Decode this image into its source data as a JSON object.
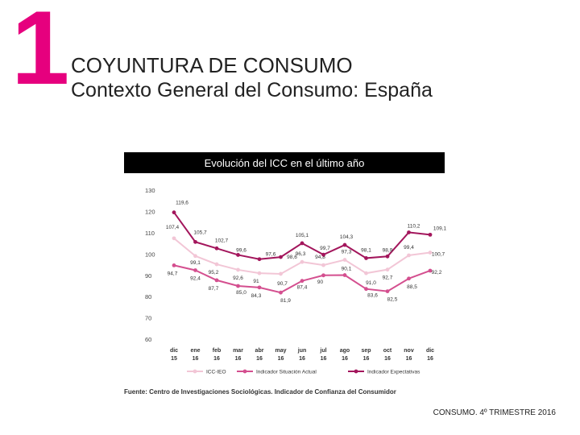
{
  "header": {
    "number": "1",
    "title": "COYUNTURA DE CONSUMO",
    "subtitle": "Contexto General del Consumo: España"
  },
  "colors": {
    "accent": "#e6007e",
    "icc": "#f2c6d6",
    "situacion": "#d44f8f",
    "expectativas": "#a3165c"
  },
  "chart_data": {
    "type": "line",
    "title": "Evolución del ICC en el último año",
    "categories": [
      [
        "dic",
        "15"
      ],
      [
        "ene",
        "16"
      ],
      [
        "feb",
        "16"
      ],
      [
        "mar",
        "16"
      ],
      [
        "abr",
        "16"
      ],
      [
        "may",
        "16"
      ],
      [
        "jun",
        "16"
      ],
      [
        "jul",
        "16"
      ],
      [
        "ago",
        "16"
      ],
      [
        "sep",
        "16"
      ],
      [
        "oct",
        "16"
      ],
      [
        "nov",
        "16"
      ],
      [
        "dic",
        "16"
      ]
    ],
    "ylim": [
      60,
      130
    ],
    "yticks": [
      60,
      70,
      80,
      90,
      100,
      110,
      120,
      130
    ],
    "legend_position": "bottom",
    "series": [
      {
        "name": "ICC-IEO",
        "values": [
          107.4,
          99.1,
          95.2,
          92.6,
          91,
          90.7,
          96.3,
          94.8,
          97.3,
          91.0,
          92.7,
          99.4,
          100.7
        ],
        "labels": [
          "107,4",
          "99,1",
          "95,2",
          "92,6",
          "91",
          "90,7",
          "96,3",
          "94,8",
          "97,3",
          "91,0",
          "92,7",
          "99,4",
          "100,7"
        ]
      },
      {
        "name": "Indicador Situación Actual",
        "values": [
          94.7,
          92.4,
          87.7,
          85.0,
          84.3,
          81.9,
          87.4,
          90,
          90.1,
          83.6,
          82.5,
          88.5,
          92.2
        ],
        "labels": [
          "94,7",
          "92,4",
          "87,7",
          "85,0",
          "84,3",
          "81,9",
          "87,4",
          "90",
          "90,1",
          "83,6",
          "82,5",
          "88,5",
          "92,2"
        ]
      },
      {
        "name": "Indicador Expectativas",
        "values": [
          119.6,
          105.7,
          102.7,
          99.6,
          97.6,
          98.6,
          105.1,
          99.7,
          104.3,
          98.1,
          98.9,
          110.2,
          109.1
        ],
        "labels": [
          "119,6",
          "105,7",
          "102,7",
          "99,6",
          "97,6",
          "98,6",
          "105,1",
          "99,7",
          "104,3",
          "98,1",
          "98,9",
          "110,2",
          "109,1"
        ]
      }
    ]
  },
  "source": "Fuente: Centro de Investigaciones Sociológicas. Indicador de Confianza del Consumidor",
  "footer": "CONSUMO. 4º TRIMESTRE 2016"
}
